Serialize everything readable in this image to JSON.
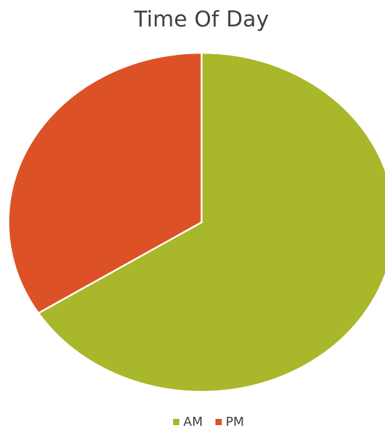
{
  "chart_data": {
    "type": "pie",
    "title": "Time Of Day",
    "categories": [
      "AM",
      "PM"
    ],
    "values": [
      66,
      34
    ],
    "colors": [
      "#a9b72a",
      "#dc5226"
    ],
    "legend_position": "bottom"
  }
}
